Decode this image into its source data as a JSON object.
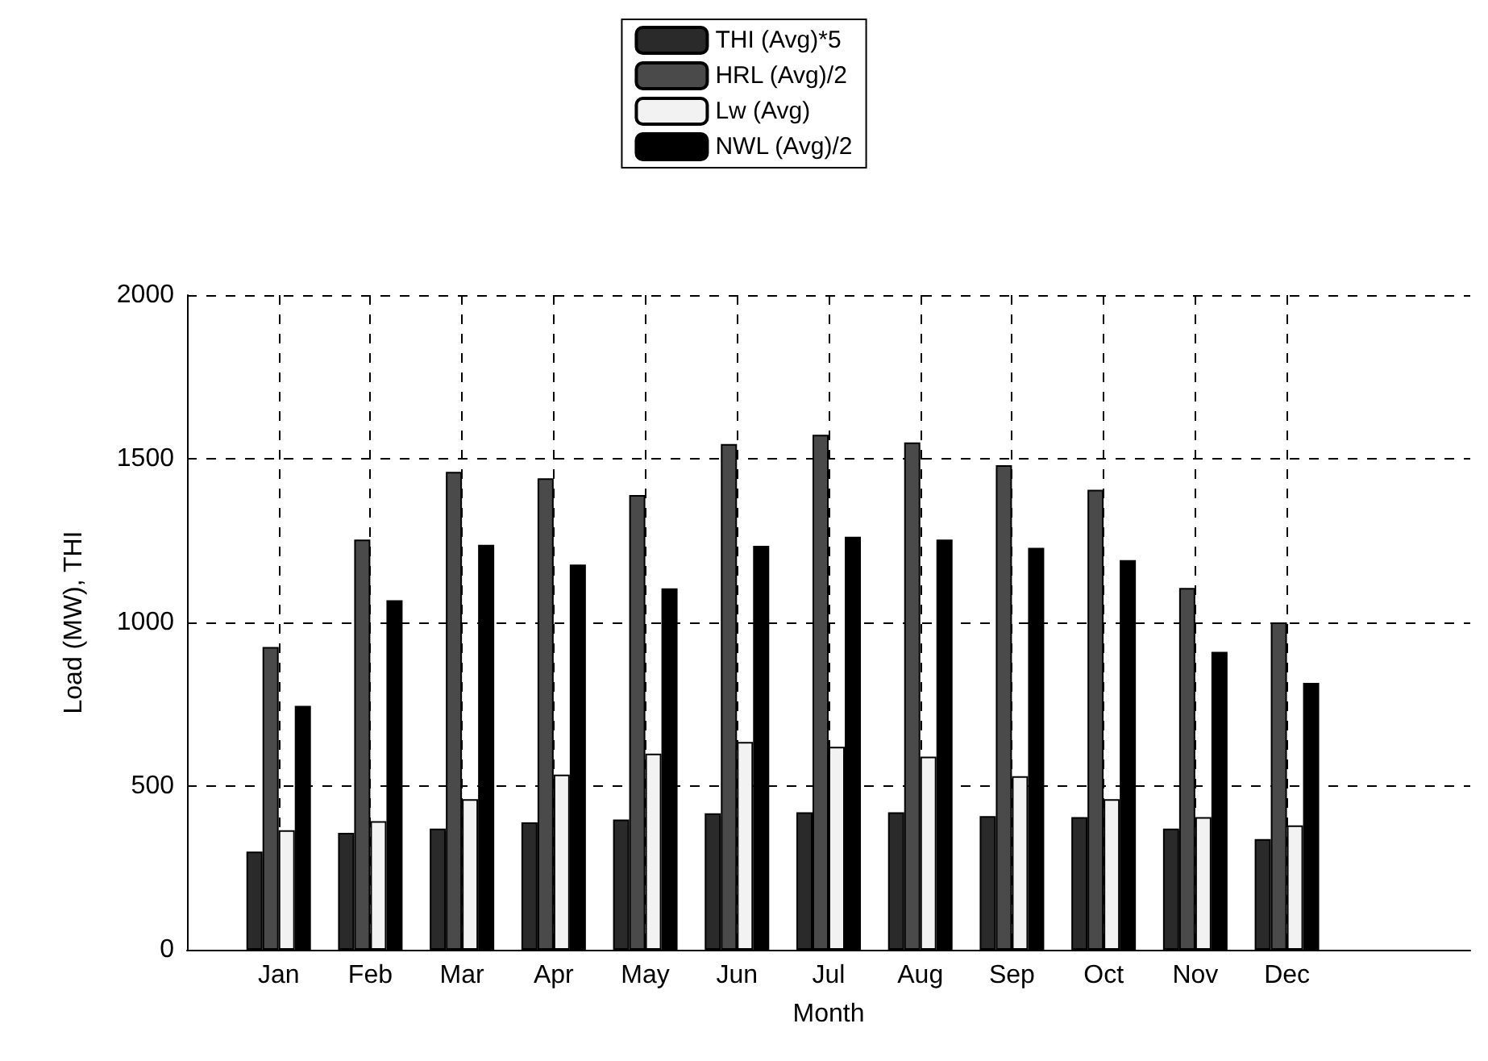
{
  "chart_data": {
    "type": "bar",
    "xlabel": "Month",
    "ylabel": "Load (MW), THI",
    "categories": [
      "Jan",
      "Feb",
      "Mar",
      "Apr",
      "May",
      "Jun",
      "Jul",
      "Aug",
      "Sep",
      "Oct",
      "Nov",
      "Dec"
    ],
    "series": [
      {
        "name": "THI (Avg)*5",
        "color": "#2a2a2a",
        "values": [
          300,
          357,
          370,
          389,
          398,
          417,
          420,
          420,
          408,
          405,
          370,
          338
        ]
      },
      {
        "name": "HRL (Avg)/2",
        "color": "#4a4a4a",
        "values": [
          925,
          1253,
          1460,
          1440,
          1389,
          1545,
          1573,
          1550,
          1480,
          1405,
          1105,
          1000
        ]
      },
      {
        "name": "Lw (Avg)",
        "color": "#f2f2f2",
        "values": [
          365,
          393,
          460,
          535,
          599,
          635,
          620,
          590,
          530,
          460,
          405,
          380
        ]
      },
      {
        "name": "NWL (Avg)/2",
        "color": "#000000",
        "values": [
          745,
          1068,
          1237,
          1177,
          1104,
          1234,
          1262,
          1253,
          1228,
          1190,
          910,
          815
        ]
      }
    ],
    "ylim": [
      0,
      2000
    ],
    "yticks": [
      0,
      500,
      1000,
      1500,
      2000
    ],
    "grid": true,
    "legend": "top"
  }
}
